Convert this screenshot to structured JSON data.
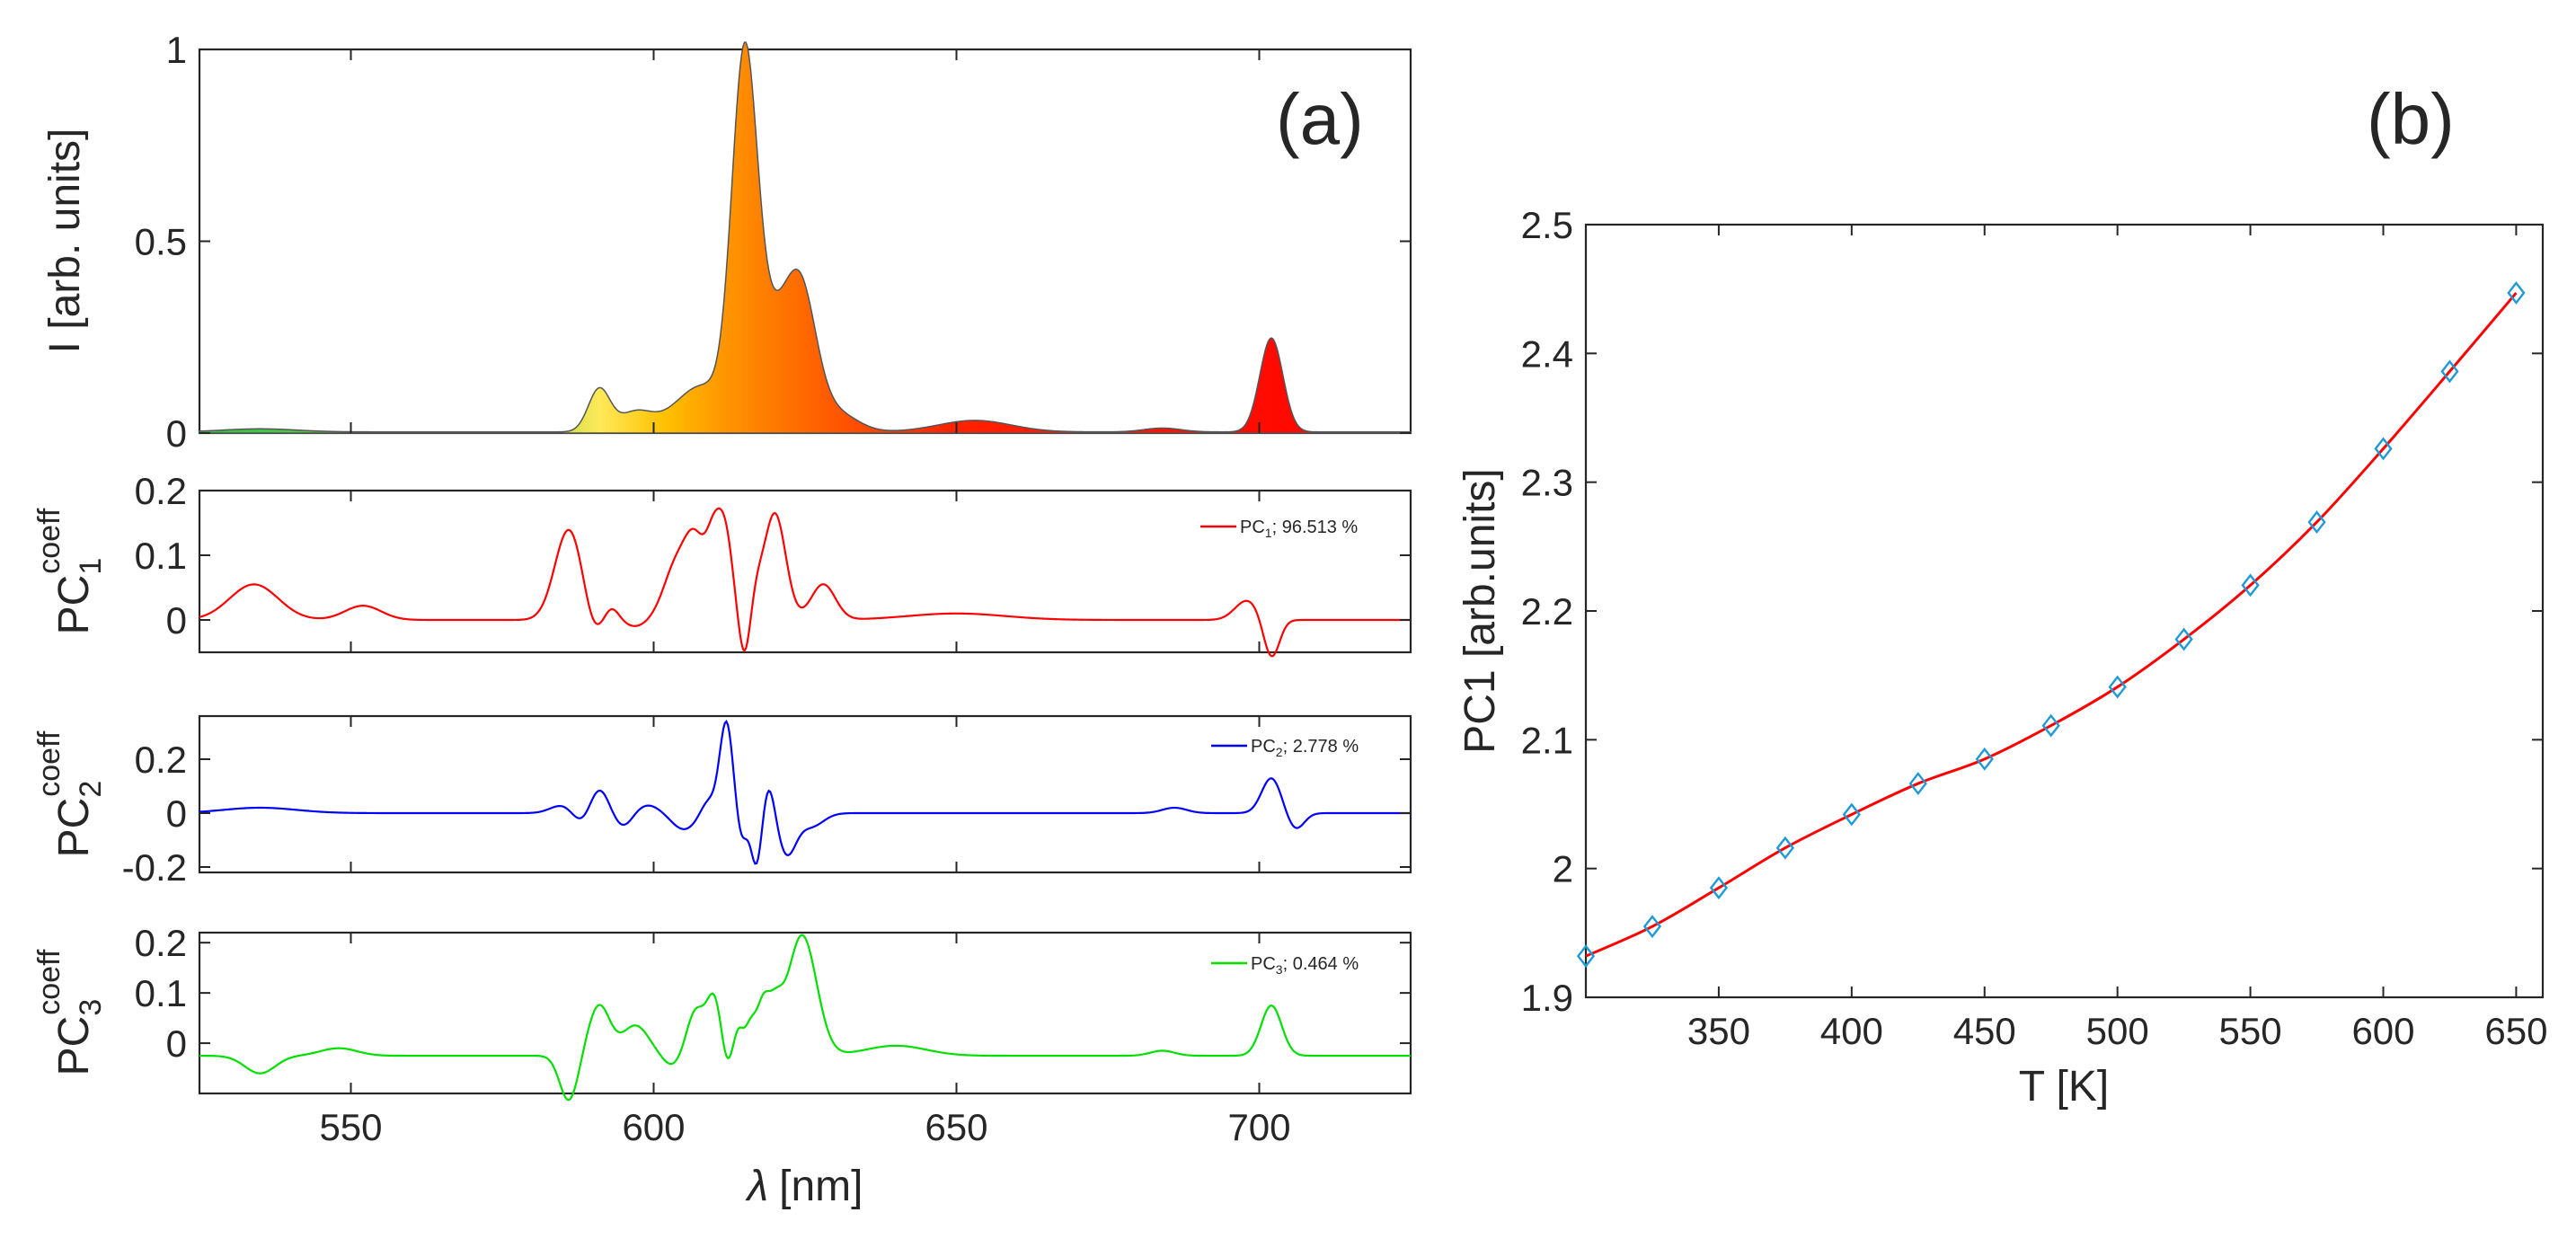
{
  "chart_data": [
    {
      "id": "spectrum",
      "type": "area",
      "panel_label": "(a)",
      "xlabel_symbol": "λ",
      "xlabel_unit": "[nm]",
      "ylabel": "I [arb. units]",
      "xlim": [
        525,
        725
      ],
      "ylim": [
        0,
        1
      ],
      "yticks": [
        "0",
        "0.5",
        "1"
      ],
      "xticks": [
        "550",
        "600",
        "650",
        "700"
      ],
      "fill": "wavelength color gradient (green → yellow → orange → red)",
      "peaks": [
        {
          "center": 591,
          "amp": 0.11,
          "width": 1.8
        },
        {
          "center": 597,
          "amp": 0.05,
          "width": 2.8
        },
        {
          "center": 608,
          "amp": 0.12,
          "width": 4.5
        },
        {
          "center": 615,
          "amp": 0.93,
          "width": 2.1
        },
        {
          "center": 619.5,
          "amp": 0.22,
          "width": 2.6
        },
        {
          "center": 624.2,
          "amp": 0.36,
          "width": 2.6
        },
        {
          "center": 630,
          "amp": 0.05,
          "width": 3.5
        },
        {
          "center": 653,
          "amp": 0.03,
          "width": 6
        },
        {
          "center": 702,
          "amp": 0.245,
          "width": 1.9
        },
        {
          "center": 535,
          "amp": 0.008,
          "width": 6
        },
        {
          "center": 684,
          "amp": 0.01,
          "width": 3
        }
      ]
    },
    {
      "id": "pc1",
      "type": "line",
      "ylabel_base": "PC",
      "ylabel_sub": "1",
      "ylabel_sup": "coeff",
      "color": "#ff0000",
      "xlim": [
        525,
        725
      ],
      "ylim": [
        -0.05,
        0.2
      ],
      "yticks": [
        "0",
        "0.1",
        "0.2"
      ],
      "legend_base": "PC",
      "legend_sub": "1",
      "legend_rest": "; 96.513 %",
      "baseline": 0.0,
      "peaks": [
        {
          "center": 534,
          "amp": 0.055,
          "width": 4
        },
        {
          "center": 552,
          "amp": 0.022,
          "width": 3
        },
        {
          "center": 586,
          "amp": 0.14,
          "width": 2.3
        },
        {
          "center": 590,
          "amp": -0.03,
          "width": 1.5
        },
        {
          "center": 593,
          "amp": 0.02,
          "width": 1.2
        },
        {
          "center": 597,
          "amp": -0.01,
          "width": 1.8
        },
        {
          "center": 604,
          "amp": 0.09,
          "width": 2.2
        },
        {
          "center": 607,
          "amp": 0.095,
          "width": 1.6
        },
        {
          "center": 610,
          "amp": 0.12,
          "width": 1.3
        },
        {
          "center": 612,
          "amp": 0.11,
          "width": 1.2
        },
        {
          "center": 615,
          "amp": -0.06,
          "width": 0.9
        },
        {
          "center": 617,
          "amp": 0.03,
          "width": 1.0
        },
        {
          "center": 620,
          "amp": 0.165,
          "width": 1.8
        },
        {
          "center": 628,
          "amp": 0.055,
          "width": 2.0
        },
        {
          "center": 650,
          "amp": 0.01,
          "width": 8
        },
        {
          "center": 698,
          "amp": 0.03,
          "width": 2.0
        },
        {
          "center": 702,
          "amp": -0.06,
          "width": 1.3
        }
      ]
    },
    {
      "id": "pc2",
      "type": "line",
      "ylabel_base": "PC",
      "ylabel_sub": "2",
      "ylabel_sup": "coeff",
      "color": "#0000ff",
      "xlim": [
        525,
        725
      ],
      "ylim": [
        -0.22,
        0.36
      ],
      "yticks": [
        "-0.2",
        "0",
        "0.2"
      ],
      "legend_base": "PC",
      "legend_sub": "2",
      "legend_rest": "; 2.778 %",
      "baseline": 0.0,
      "peaks": [
        {
          "center": 535,
          "amp": 0.02,
          "width": 6
        },
        {
          "center": 585,
          "amp": 0.03,
          "width": 2
        },
        {
          "center": 588,
          "amp": -0.04,
          "width": 1.5
        },
        {
          "center": 591,
          "amp": 0.09,
          "width": 1.5
        },
        {
          "center": 595,
          "amp": -0.05,
          "width": 1.5
        },
        {
          "center": 599,
          "amp": 0.03,
          "width": 2
        },
        {
          "center": 605,
          "amp": -0.06,
          "width": 2
        },
        {
          "center": 609,
          "amp": 0.05,
          "width": 1.2
        },
        {
          "center": 612,
          "amp": 0.34,
          "width": 1.1
        },
        {
          "center": 614.5,
          "amp": -0.1,
          "width": 0.9
        },
        {
          "center": 617,
          "amp": -0.2,
          "width": 0.9
        },
        {
          "center": 619,
          "amp": 0.12,
          "width": 1.0
        },
        {
          "center": 622,
          "amp": -0.15,
          "width": 1.5
        },
        {
          "center": 626,
          "amp": -0.05,
          "width": 2
        },
        {
          "center": 686,
          "amp": 0.02,
          "width": 2
        },
        {
          "center": 702,
          "amp": 0.13,
          "width": 1.6
        },
        {
          "center": 706,
          "amp": -0.06,
          "width": 1.4
        }
      ]
    },
    {
      "id": "pc3",
      "type": "line",
      "ylabel_base": "PC",
      "ylabel_sub": "3",
      "ylabel_sup": "coeff",
      "color": "#00e000",
      "xlim": [
        525,
        725
      ],
      "ylim": [
        -0.1,
        0.22
      ],
      "yticks": [
        "0",
        "0.1",
        "0.2"
      ],
      "legend_base": "PC",
      "legend_sub": "3",
      "legend_rest": "; 0.464 %",
      "baseline": -0.025,
      "peaks": [
        {
          "center": 535,
          "amp": -0.035,
          "width": 2.5
        },
        {
          "center": 548,
          "amp": 0.015,
          "width": 3
        },
        {
          "center": 586,
          "amp": -0.09,
          "width": 1.5
        },
        {
          "center": 591,
          "amp": 0.1,
          "width": 1.8
        },
        {
          "center": 597,
          "amp": 0.06,
          "width": 2.2
        },
        {
          "center": 603,
          "amp": -0.02,
          "width": 1.5
        },
        {
          "center": 607,
          "amp": 0.09,
          "width": 1.5
        },
        {
          "center": 610,
          "amp": 0.11,
          "width": 1.2
        },
        {
          "center": 612,
          "amp": -0.03,
          "width": 0.8
        },
        {
          "center": 614,
          "amp": 0.05,
          "width": 0.8
        },
        {
          "center": 616,
          "amp": 0.06,
          "width": 0.9
        },
        {
          "center": 618,
          "amp": 0.09,
          "width": 1.0
        },
        {
          "center": 620,
          "amp": 0.08,
          "width": 1.2
        },
        {
          "center": 624.5,
          "amp": 0.24,
          "width": 2.4
        },
        {
          "center": 640,
          "amp": 0.02,
          "width": 5
        },
        {
          "center": 684,
          "amp": 0.01,
          "width": 2
        },
        {
          "center": 702,
          "amp": 0.1,
          "width": 1.7
        }
      ]
    },
    {
      "id": "pc1_vs_T",
      "type": "scatter",
      "panel_label": "(b)",
      "xlabel": "T [K]",
      "ylabel": "PC1 [arb.units]",
      "xlim": [
        300,
        660
      ],
      "ylim": [
        1.9,
        2.5
      ],
      "xticks": [
        "350",
        "400",
        "450",
        "500",
        "550",
        "600",
        "650"
      ],
      "yticks": [
        "1.9",
        "2",
        "2.1",
        "2.2",
        "2.3",
        "2.4",
        "2.5"
      ],
      "marker": "diamond",
      "marker_color": "#1f9ad6",
      "fit_color": "#ff0000",
      "x": [
        300,
        325,
        350,
        375,
        400,
        425,
        450,
        475,
        500,
        525,
        550,
        575,
        600,
        625,
        650
      ],
      "y": [
        1.932,
        1.955,
        1.985,
        2.016,
        2.042,
        2.066,
        2.085,
        2.111,
        2.141,
        2.178,
        2.22,
        2.269,
        2.326,
        2.386,
        2.447
      ]
    }
  ]
}
